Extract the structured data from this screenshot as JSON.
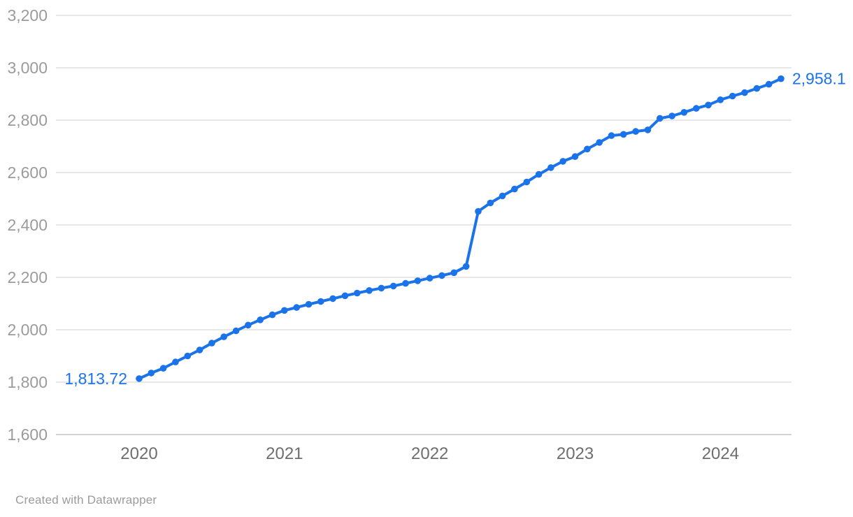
{
  "footer": {
    "text": "Created with Datawrapper"
  },
  "chart_data": {
    "type": "line",
    "title": "",
    "xlabel": "",
    "ylabel": "",
    "legend": "none",
    "grid": "horizontal",
    "ylim": [
      1600,
      3200
    ],
    "y_ticks": [
      1600,
      1800,
      2000,
      2200,
      2400,
      2600,
      2800,
      3000,
      3200
    ],
    "x_tick_labels": [
      "2020",
      "2021",
      "2022",
      "2023",
      "2024"
    ],
    "x_tick_month_index": [
      0,
      12,
      24,
      36,
      48
    ],
    "first_point_label": "1,813.72",
    "last_point_label": "2,958.1",
    "line_color": "#1a73e8",
    "grid_color": "#e8e8e8",
    "baseline_color": "#d2d2d2",
    "y_label_color": "#9b9b9b",
    "x_label_color": "#6e6e6e",
    "months": [
      "2020-01",
      "2020-02",
      "2020-03",
      "2020-04",
      "2020-05",
      "2020-06",
      "2020-07",
      "2020-08",
      "2020-09",
      "2020-10",
      "2020-11",
      "2020-12",
      "2021-01",
      "2021-02",
      "2021-03",
      "2021-04",
      "2021-05",
      "2021-06",
      "2021-07",
      "2021-08",
      "2021-09",
      "2021-10",
      "2021-11",
      "2021-12",
      "2022-01",
      "2022-02",
      "2022-03",
      "2022-04",
      "2022-05",
      "2022-06",
      "2022-07",
      "2022-08",
      "2022-09",
      "2022-10",
      "2022-11",
      "2022-12",
      "2023-01",
      "2023-02",
      "2023-03",
      "2023-04",
      "2023-05",
      "2023-06",
      "2023-07",
      "2023-08",
      "2023-09",
      "2023-10",
      "2023-11",
      "2023-12",
      "2024-01",
      "2024-02",
      "2024-03",
      "2024-04",
      "2024-05",
      "2024-06"
    ],
    "series": [
      {
        "name": "value",
        "values": [
          1813.72,
          1835,
          1853,
          1877,
          1900,
          1923,
          1949,
          1973,
          1996,
          2018,
          2038,
          2057,
          2074,
          2085,
          2097,
          2108,
          2119,
          2130,
          2140,
          2150,
          2159,
          2167,
          2177,
          2187,
          2197,
          2207,
          2218,
          2242,
          2452,
          2484,
          2511,
          2537,
          2564,
          2593,
          2619,
          2643,
          2661,
          2690,
          2715,
          2741,
          2746,
          2757,
          2763,
          2807,
          2816,
          2830,
          2845,
          2858,
          2878,
          2892,
          2905,
          2921,
          2937,
          2958.1
        ]
      }
    ]
  }
}
